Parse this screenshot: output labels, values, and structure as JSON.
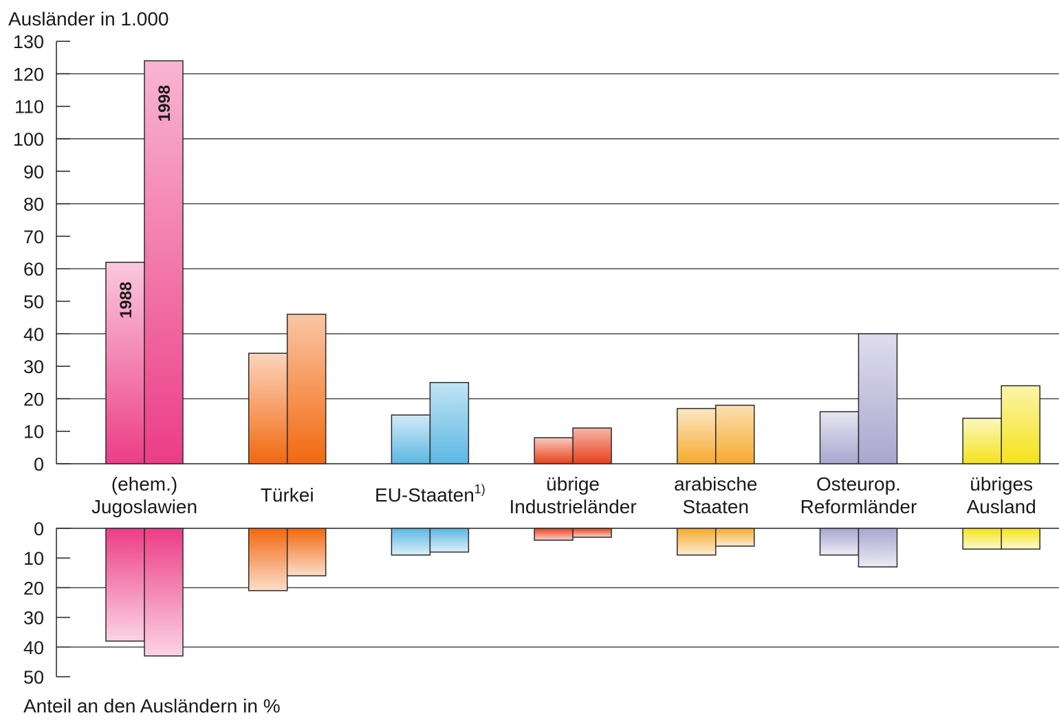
{
  "chart_data": {
    "type": "bar",
    "categories": [
      [
        "(ehem.)",
        "Jugoslawien"
      ],
      [
        "Türkei"
      ],
      [
        "EU-Staaten"
      ],
      [
        "übrige",
        "Industrieländer"
      ],
      [
        "arabische",
        "Staaten"
      ],
      [
        "Osteurop.",
        "Reformländer"
      ],
      [
        "übriges",
        "Ausland"
      ]
    ],
    "category_footnotes": [
      "",
      "",
      "1)",
      "",
      "",
      "",
      ""
    ],
    "colors": [
      "#ec3d86",
      "#f2680f",
      "#5cb7e3",
      "#e8401a",
      "#f6aa2e",
      "#aaa6cf",
      "#f4e31a"
    ],
    "top_panel": {
      "ylabel": "Ausländer in 1.000",
      "ylim": [
        0,
        130
      ],
      "yticks": [
        0,
        10,
        20,
        30,
        40,
        50,
        60,
        70,
        80,
        90,
        100,
        110,
        120,
        130
      ],
      "gridlines": [
        20,
        40,
        60,
        80,
        100,
        120
      ],
      "series": [
        {
          "name": "1988",
          "values": [
            62,
            34,
            15,
            8,
            17,
            16,
            14
          ]
        },
        {
          "name": "1998",
          "values": [
            124,
            46,
            25,
            11,
            18,
            40,
            24
          ]
        }
      ]
    },
    "bottom_panel": {
      "ylabel": "Anteil an den Ausländern in %",
      "ylim": [
        0,
        50
      ],
      "inverted": true,
      "yticks": [
        0,
        10,
        20,
        30,
        40,
        50
      ],
      "gridlines": [
        20,
        40
      ],
      "series": [
        {
          "name": "1988",
          "values": [
            38,
            21,
            9,
            4,
            9,
            9,
            7
          ]
        },
        {
          "name": "1998",
          "values": [
            43,
            16,
            8,
            3,
            6,
            13,
            7
          ]
        }
      ]
    },
    "bar_labels": {
      "jugoslawien_1988": "1988",
      "jugoslawien_1998": "1998"
    },
    "grid": true
  }
}
